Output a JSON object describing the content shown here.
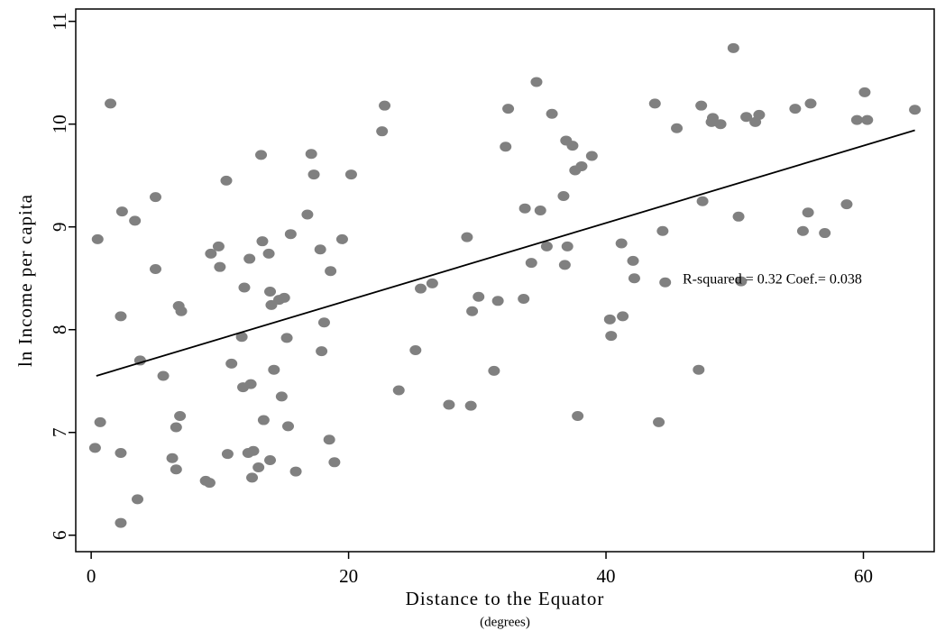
{
  "chart_data": {
    "type": "scatter",
    "x_label": "Distance to the Equator",
    "x_label_note": "(degrees)",
    "y_label": "ln Income per capita",
    "annotation": "R-squared = 0.32 Coef.= 0.038",
    "color": "#808080",
    "line_color": "#000000",
    "xlim": [
      -1.2,
      65.5
    ],
    "ylim": [
      5.84,
      11.12
    ],
    "xticks": [
      0,
      20,
      40,
      60
    ],
    "yticks": [
      6,
      7,
      8,
      9,
      10,
      11
    ],
    "fit_line": {
      "x": [
        0.4,
        64
      ],
      "y": [
        7.55,
        9.94
      ]
    },
    "x": [
      1.5,
      0.3,
      0.7,
      0.5,
      2.3,
      2.3,
      2.3,
      2.4,
      3.4,
      3.6,
      3.8,
      5.0,
      5.0,
      5.6,
      6.3,
      6.6,
      6.6,
      6.8,
      6.9,
      7.0,
      8.9,
      9.2,
      9.3,
      9.9,
      10.0,
      10.5,
      10.6,
      10.9,
      11.7,
      11.8,
      11.9,
      12.2,
      12.3,
      12.4,
      12.5,
      12.6,
      13.0,
      13.2,
      13.3,
      13.4,
      13.8,
      13.9,
      13.9,
      14.0,
      14.2,
      14.6,
      14.8,
      15.0,
      15.2,
      15.3,
      15.5,
      15.9,
      16.8,
      17.1,
      17.3,
      17.8,
      17.9,
      18.1,
      18.5,
      18.6,
      18.9,
      19.5,
      20.2,
      22.6,
      22.8,
      23.9,
      25.2,
      25.6,
      26.5,
      27.8,
      29.2,
      29.5,
      29.6,
      30.1,
      31.3,
      31.6,
      32.2,
      32.4,
      33.6,
      33.7,
      34.2,
      34.6,
      34.9,
      35.4,
      35.8,
      36.7,
      36.8,
      36.9,
      37.0,
      37.4,
      37.6,
      37.8,
      38.1,
      38.9,
      40.3,
      40.4,
      41.2,
      41.3,
      42.1,
      42.2,
      43.8,
      44.1,
      44.4,
      44.6,
      45.5,
      47.2,
      47.4,
      47.5,
      48.2,
      48.3,
      48.9,
      49.9,
      50.3,
      50.5,
      50.9,
      51.6,
      51.9,
      54.7,
      55.3,
      55.7,
      55.9,
      57.0,
      58.7,
      59.5,
      60.1,
      60.3,
      64.0
    ],
    "values": [
      10.2,
      6.85,
      7.1,
      8.88,
      6.8,
      8.13,
      6.12,
      9.15,
      9.06,
      6.35,
      7.7,
      9.29,
      8.59,
      7.55,
      6.75,
      7.05,
      6.64,
      8.23,
      7.16,
      8.18,
      6.53,
      6.51,
      8.74,
      8.81,
      8.61,
      9.45,
      6.79,
      7.67,
      7.93,
      7.44,
      8.41,
      6.8,
      8.69,
      7.47,
      6.56,
      6.82,
      6.66,
      9.7,
      8.86,
      7.12,
      8.74,
      6.73,
      8.37,
      8.24,
      7.61,
      8.29,
      7.35,
      8.31,
      7.92,
      7.06,
      8.93,
      6.62,
      9.12,
      9.71,
      9.51,
      8.78,
      7.79,
      8.07,
      6.93,
      8.57,
      6.71,
      8.88,
      9.51,
      9.93,
      10.18,
      7.41,
      7.8,
      8.4,
      8.45,
      7.27,
      8.9,
      7.26,
      8.18,
      8.32,
      7.6,
      8.28,
      9.78,
      10.15,
      8.3,
      9.18,
      8.65,
      10.41,
      9.16,
      8.81,
      10.1,
      9.3,
      8.63,
      9.84,
      8.81,
      9.79,
      9.55,
      7.16,
      9.59,
      9.69,
      8.1,
      7.94,
      8.84,
      8.13,
      8.67,
      8.5,
      10.2,
      7.1,
      8.96,
      8.46,
      9.96,
      7.61,
      10.18,
      9.25,
      10.02,
      10.06,
      10.0,
      10.74,
      9.1,
      8.47,
      10.07,
      10.02,
      10.09,
      10.15,
      8.96,
      9.14,
      10.2,
      8.94,
      9.22,
      10.04,
      10.31,
      10.04,
      10.14
    ]
  }
}
